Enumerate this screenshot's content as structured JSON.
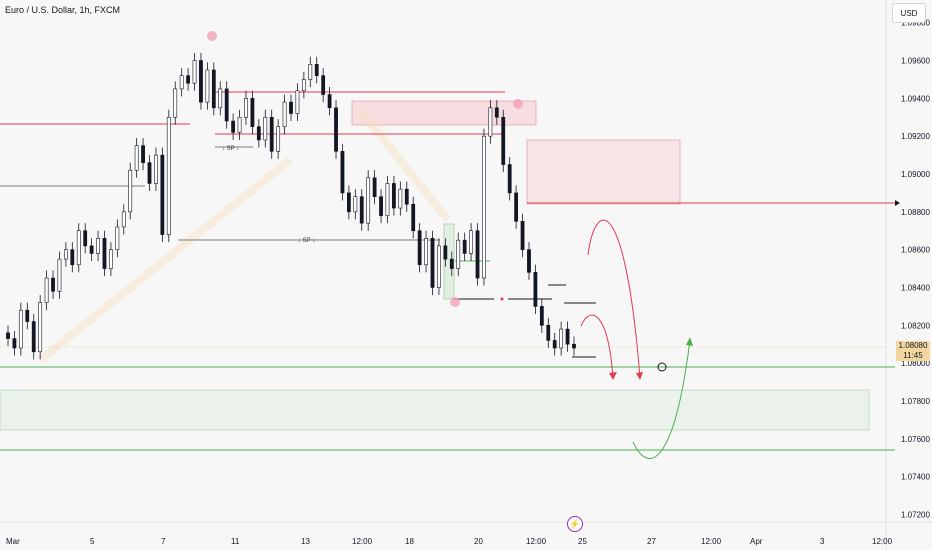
{
  "header": {
    "title": "Euro / U.S. Dollar, 1h, FXCM",
    "currency": "USD"
  },
  "price_tag": {
    "price": "1.08080",
    "countdown": "11:45"
  },
  "colors": {
    "up": "#26a69a",
    "down": "#ef5350",
    "resistance": "#e53950",
    "support": "#4caf50",
    "level": "#131722"
  },
  "annotations": {
    "sp_label_1": "↓ SP ↓",
    "sp_label_2": "↓ SP ↓"
  },
  "chart_data": {
    "type": "line",
    "y_ticks": [
      "1.09800",
      "1.09600",
      "1.09400",
      "1.09200",
      "1.09000",
      "1.08800",
      "1.08600",
      "1.08400",
      "1.08200",
      "1.08000",
      "1.07800",
      "1.07600",
      "1.07400",
      "1.07200"
    ],
    "x_ticks": [
      "Mar",
      "5",
      "7",
      "11",
      "13",
      "12:00",
      "18",
      "20",
      "12:00",
      "25",
      "27",
      "12:00",
      "Apr",
      "3",
      "12:00"
    ],
    "ylim": [
      1.0716,
      1.0992
    ],
    "series": [
      {
        "values": [
          1.0813,
          1.0808,
          1.0828,
          1.0822,
          1.0806,
          1.0832,
          1.0845,
          1.0838,
          1.0855,
          1.086,
          1.0852,
          1.087,
          1.0862,
          1.0858,
          1.0866,
          1.085,
          1.086,
          1.0872,
          1.088,
          1.0902,
          1.0915,
          1.0906,
          1.0895,
          1.091,
          1.0868,
          1.093,
          1.0945,
          1.0952,
          1.0948,
          1.096,
          1.0938,
          1.0955,
          1.0935,
          1.0945,
          1.0928,
          1.0922,
          1.093,
          1.094,
          1.0925,
          1.0918,
          1.093,
          1.0912,
          1.0925,
          1.0938,
          1.0932,
          1.0944,
          1.095,
          1.0958,
          1.0952,
          1.0942,
          1.0935,
          1.0912,
          1.089,
          1.088,
          1.0888,
          1.0874,
          1.0898,
          1.0888,
          1.0878,
          1.0895,
          1.0882,
          1.0892,
          1.0884,
          1.087,
          1.0852,
          1.0866,
          1.084,
          1.0862,
          1.0855,
          1.085,
          1.0865,
          1.0858,
          1.087,
          1.0845,
          1.092,
          1.0935,
          1.093,
          1.0905,
          1.089,
          1.0875,
          1.086,
          1.0848,
          1.083,
          1.082,
          1.0812,
          1.0808,
          1.0818,
          1.081,
          1.0808
        ]
      }
    ]
  }
}
